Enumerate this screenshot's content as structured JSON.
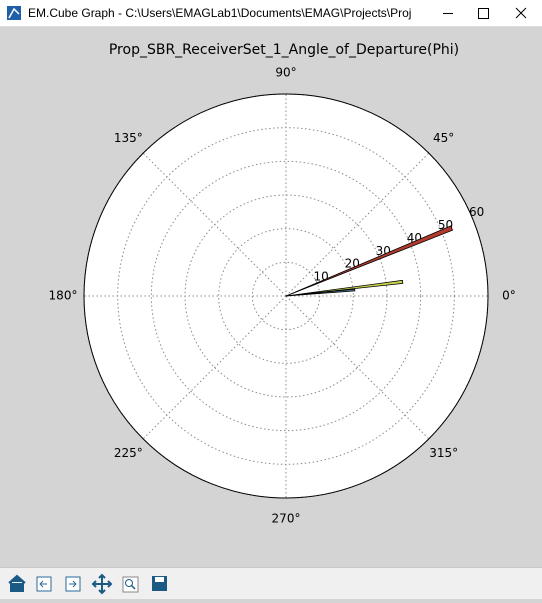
{
  "window_title": "EM.Cube Graph - C:\\Users\\EMAGLab1\\Documents\\EMAG\\Projects\\Proj",
  "chart_data": {
    "type": "polar-bar",
    "title": "Prop_SBR_ReceiverSet_1_Angle_of_Departure(Phi)",
    "x": [
      22.3,
      6.9,
      5.0
    ],
    "series": [
      {
        "color": "#b03a2e",
        "values": [
          53.2,
          null,
          null
        ]
      },
      {
        "color": "#c9d44a",
        "values": [
          null,
          34.9,
          null
        ]
      },
      {
        "color": "#4a7fa0",
        "values": [
          null,
          null,
          20.5
        ]
      }
    ],
    "xlim": [
      0,
      360
    ],
    "xticks": [
      {
        "value": 0,
        "label": "0°"
      },
      {
        "value": 45,
        "label": "45°"
      },
      {
        "value": 90,
        "label": "90°"
      },
      {
        "value": 135,
        "label": "135°"
      },
      {
        "value": 180,
        "label": "180°"
      },
      {
        "value": 225,
        "label": "225°"
      },
      {
        "value": 270,
        "label": "270°"
      },
      {
        "value": 315,
        "label": "315°"
      }
    ],
    "ylim": [
      0,
      60
    ],
    "yticks": [
      10,
      20,
      30,
      40,
      50,
      60
    ],
    "grid": true
  }
}
